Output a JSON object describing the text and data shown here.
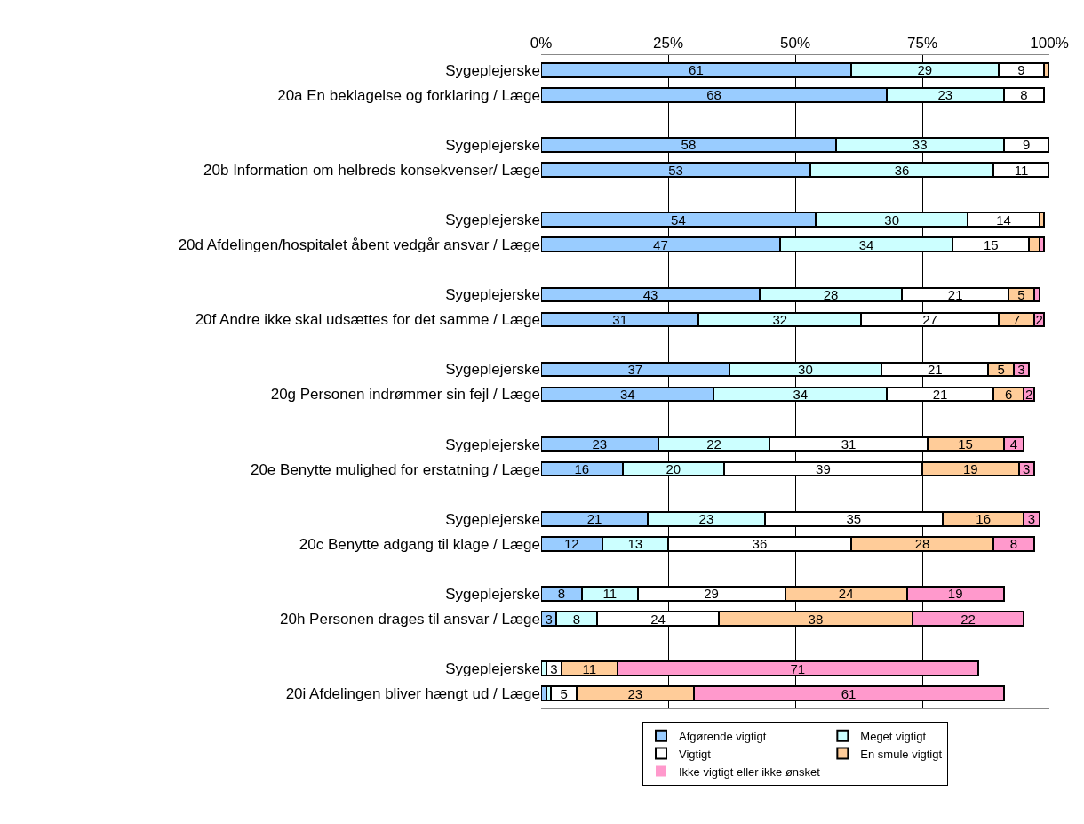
{
  "chart_data": {
    "type": "bar",
    "orientation": "horizontal",
    "stacked": true,
    "grid": "x",
    "legend": "bottom",
    "categories": [
      "Sygeplejerske",
      "20a En beklagelse og forklaring / Læge",
      "Sygeplejerske",
      "20b Information om helbreds konsekvenser/ Læge",
      "Sygeplejerske",
      "20d Afdelingen/hospitalet åbent vedgår ansvar / Læge",
      "Sygeplejerske",
      "20f Andre ikke skal udsættes for det samme / Læge",
      "Sygeplejerske",
      "20g Personen indrømmer sin fejl / Læge",
      "Sygeplejerske",
      "20e Benytte mulighed for erstatning / Læge",
      "Sygeplejerske",
      "20c Benytte adgang til klage / Læge",
      "Sygeplejerske",
      "20h Personen drages til ansvar / Læge",
      "Sygeplejerske",
      "20i Afdelingen bliver hængt ud / Læge"
    ],
    "series": [
      {
        "name": "Afgørende vigtigt",
        "color": "#99ccff",
        "values": [
          61,
          68,
          58,
          53,
          54,
          47,
          43,
          31,
          37,
          34,
          23,
          16,
          21,
          12,
          8,
          3,
          0,
          1
        ],
        "value_labels": [
          "61",
          "68",
          "58",
          "53",
          "54",
          "47",
          "43",
          "31",
          "37",
          "34",
          "23",
          "16",
          "21",
          "12",
          "8",
          "3",
          null,
          null
        ]
      },
      {
        "name": "Meget vigtigt",
        "color": "#ccffff",
        "values": [
          29,
          23,
          33,
          36,
          30,
          34,
          28,
          32,
          30,
          34,
          22,
          20,
          23,
          13,
          11,
          8,
          1,
          1
        ],
        "value_labels": [
          "29",
          "23",
          "33",
          "36",
          "30",
          "34",
          "28",
          "32",
          "30",
          "34",
          "22",
          "20",
          "23",
          "13",
          "11",
          "8",
          null,
          null
        ]
      },
      {
        "name": "Vigtigt",
        "color": "#ffffff",
        "values": [
          9,
          8,
          9,
          11,
          14,
          15,
          21,
          27,
          21,
          21,
          31,
          39,
          35,
          36,
          29,
          24,
          3,
          5
        ],
        "value_labels": [
          "9",
          "8",
          "9",
          "11",
          "14",
          "15",
          "21",
          "27",
          "21",
          "21",
          "31",
          "39",
          "35",
          "36",
          "29",
          "24",
          "3",
          "5"
        ]
      },
      {
        "name": "En smule vigtigt",
        "color": "#ffcc99",
        "values": [
          1,
          0,
          0,
          0,
          1,
          2,
          5,
          7,
          5,
          6,
          15,
          19,
          16,
          28,
          24,
          38,
          11,
          23
        ],
        "value_labels": [
          null,
          null,
          null,
          null,
          null,
          null,
          "5",
          "7",
          "5",
          "6",
          "15",
          "19",
          "16",
          "28",
          "24",
          "38",
          "11",
          "23"
        ]
      },
      {
        "name": "Ikke vigtigt eller ikke ønsket",
        "color": "#ff99cc",
        "values": [
          0,
          0,
          0,
          0,
          0,
          1,
          1,
          2,
          3,
          2,
          4,
          3,
          3,
          8,
          19,
          22,
          71,
          61
        ],
        "value_labels": [
          null,
          null,
          null,
          null,
          null,
          null,
          null,
          "2",
          "3",
          "2",
          "4",
          "3",
          "3",
          "8",
          "19",
          "22",
          "71",
          "61"
        ]
      }
    ],
    "xlim": [
      0,
      100
    ],
    "xticks": [
      {
        "value": 0,
        "label": "0%"
      },
      {
        "value": 25,
        "label": "25%"
      },
      {
        "value": 50,
        "label": "50%"
      },
      {
        "value": 75,
        "label": "75%"
      },
      {
        "value": 100,
        "label": "100%"
      }
    ]
  }
}
